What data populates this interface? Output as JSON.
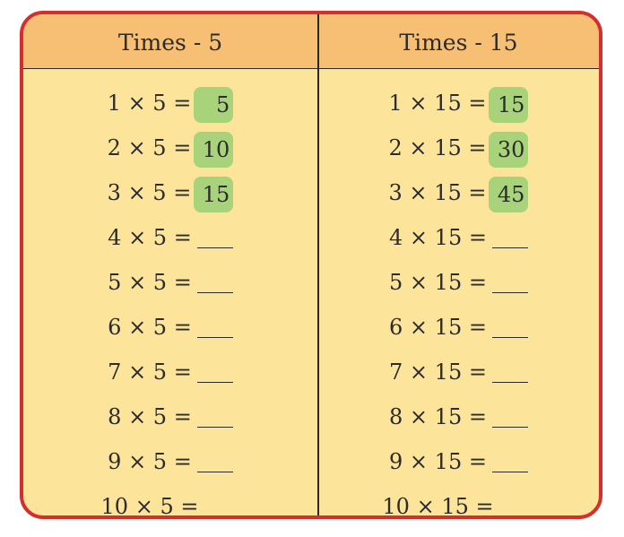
{
  "table": {
    "left_header": "Times - 5",
    "right_header": "Times - 15",
    "left_rows": [
      {
        "expr": "1 × 5 =",
        "answer": "5"
      },
      {
        "expr": "2 × 5 =",
        "answer": "10"
      },
      {
        "expr": "3 × 5 =",
        "answer": "15"
      },
      {
        "expr": "4 × 5 =",
        "answer": ""
      },
      {
        "expr": "5 × 5 =",
        "answer": ""
      },
      {
        "expr": "6 × 5 =",
        "answer": ""
      },
      {
        "expr": "7 × 5 =",
        "answer": ""
      },
      {
        "expr": "8 × 5 =",
        "answer": ""
      },
      {
        "expr": "9 × 5 =",
        "answer": ""
      },
      {
        "expr": "10 × 5 =",
        "answer": ""
      }
    ],
    "right_rows": [
      {
        "expr": "1 × 15 =",
        "answer": "15"
      },
      {
        "expr": "2 × 15 =",
        "answer": "30"
      },
      {
        "expr": "3 × 15 =",
        "answer": "45"
      },
      {
        "expr": "4 × 15 =",
        "answer": ""
      },
      {
        "expr": "5 × 15 =",
        "answer": ""
      },
      {
        "expr": "6 × 15 =",
        "answer": ""
      },
      {
        "expr": "7 × 15 =",
        "answer": ""
      },
      {
        "expr": "8 × 15 =",
        "answer": ""
      },
      {
        "expr": "9 × 15 =",
        "answer": ""
      },
      {
        "expr": "10 × 15 =",
        "answer": ""
      }
    ]
  },
  "colors": {
    "border": "#d42e2e",
    "header_bg": "#f6bf73",
    "body_bg": "#fde49b",
    "answer_highlight": "#a9d37a"
  }
}
